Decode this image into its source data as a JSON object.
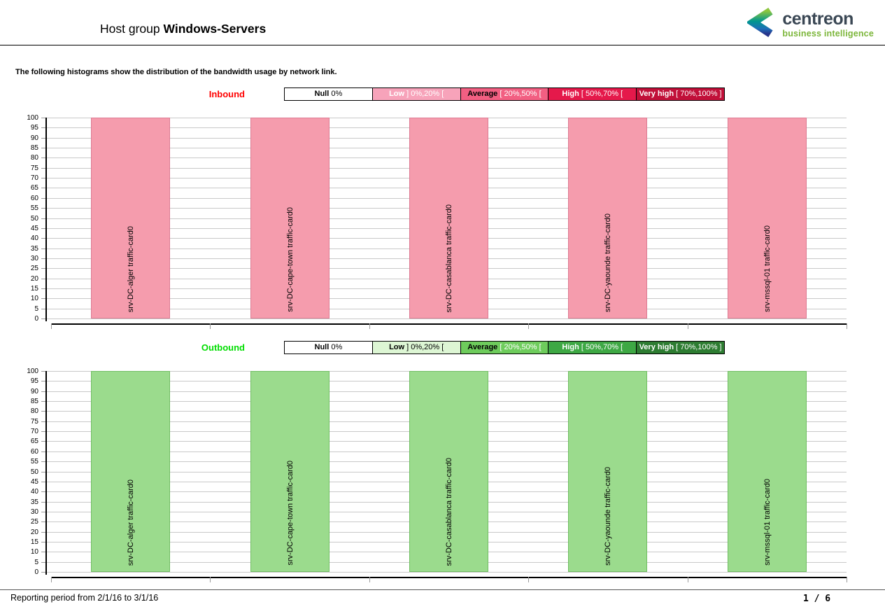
{
  "header": {
    "title_prefix": "Host group",
    "title_name": "Windows-Servers",
    "logo_name": "centreon",
    "logo_subtitle": "business intelligence"
  },
  "intro_text": "The following histograms show the distribution of the bandwidth usage by network link.",
  "charts": [
    {
      "direction_label": "Inbound",
      "label_color": "#ff0000",
      "bar_fill": "#f59cad",
      "bar_border": "#dd7b93",
      "legend": [
        {
          "name": "Null",
          "range": "0%",
          "bg": "#ffffff",
          "name_color": "#000000",
          "range_color": "#000000"
        },
        {
          "name": "Low",
          "range": "] 0%,20% [",
          "bg": "#f7a3ba",
          "name_color": "#ffffff",
          "range_color": "#ffffff"
        },
        {
          "name": "Average",
          "range": "[ 20%,50% [",
          "bg": "#f25f82",
          "name_color": "#000000",
          "range_color": "#ffffff"
        },
        {
          "name": "High",
          "range": "[ 50%,70% [",
          "bg": "#e5194b",
          "name_color": "#ffffff",
          "range_color": "#ffffff"
        },
        {
          "name": "Very high",
          "range": "[ 70%,100% ]",
          "bg": "#c11039",
          "name_color": "#ffffff",
          "range_color": "#ffffff"
        }
      ]
    },
    {
      "direction_label": "Outbound",
      "label_color": "#00dd00",
      "bar_fill": "#9bdb8d",
      "bar_border": "#70be62",
      "legend": [
        {
          "name": "Null",
          "range": "0%",
          "bg": "#ffffff",
          "name_color": "#000000",
          "range_color": "#000000"
        },
        {
          "name": "Low",
          "range": "] 0%,20% [",
          "bg": "#ddf6d4",
          "name_color": "#000000",
          "range_color": "#000000"
        },
        {
          "name": "Average",
          "range": "[ 20%,50% [",
          "bg": "#6ecc5c",
          "name_color": "#000000",
          "range_color": "#ffffff"
        },
        {
          "name": "High",
          "range": "[ 50%,70% [",
          "bg": "#3ea844",
          "name_color": "#ffffff",
          "range_color": "#ffffff"
        },
        {
          "name": "Very high",
          "range": "[ 70%,100% ]",
          "bg": "#2d7c31",
          "name_color": "#ffffff",
          "range_color": "#ffffff"
        }
      ]
    }
  ],
  "chart_data": [
    {
      "type": "bar",
      "title": "Inbound",
      "categories": [
        "srv-DC-alger traffic-card0",
        "srv-DC-cape-town traffic-card0",
        "srv-DC-casablanca traffic-card0",
        "srv-DC-yaounde traffic-card0",
        "srv-mssql-01 traffic-card0"
      ],
      "values": [
        100,
        100,
        100,
        100,
        100
      ],
      "xlabel": "",
      "ylabel": "",
      "ylim": [
        0,
        100
      ],
      "ytick_step": 5,
      "grid": true,
      "legend_position": "top"
    },
    {
      "type": "bar",
      "title": "Outbound",
      "categories": [
        "srv-DC-alger traffic-card0",
        "srv-DC-cape-town traffic-card0",
        "srv-DC-casablanca traffic-card0",
        "srv-DC-yaounde traffic-card0",
        "srv-mssql-01 traffic-card0"
      ],
      "values": [
        100,
        100,
        100,
        100,
        100
      ],
      "xlabel": "",
      "ylabel": "",
      "ylim": [
        0,
        100
      ],
      "ytick_step": 5,
      "grid": true,
      "legend_position": "top"
    }
  ],
  "footer": {
    "period": "Reporting period from 2/1/16 to 3/1/16",
    "page_number": "1 / 6"
  }
}
